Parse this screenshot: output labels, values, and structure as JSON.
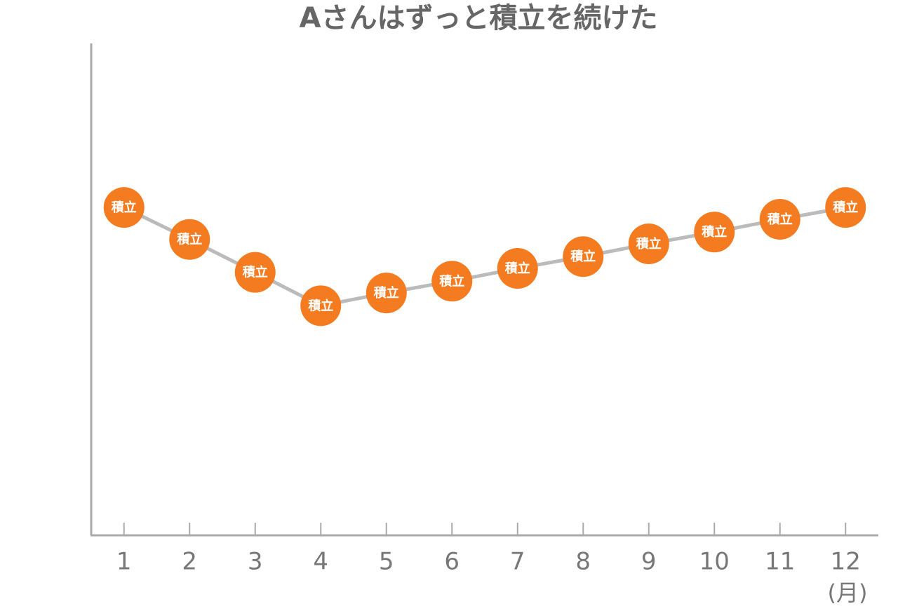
{
  "chart_data": {
    "type": "line",
    "title": "Aさんはずっと積立を続けた",
    "categories": [
      "1",
      "2",
      "3",
      "4",
      "5",
      "6",
      "7",
      "8",
      "9",
      "10",
      "11",
      "12"
    ],
    "x_label": "(月)",
    "marker_label": "積立",
    "values": [
      66.6,
      60.1,
      53.4,
      46.6,
      49.2,
      51.6,
      54.2,
      56.6,
      59.2,
      61.6,
      64.2,
      66.6
    ],
    "ylim": [
      0,
      100
    ],
    "line_color": "#bbbbbb",
    "color": "#f47b20"
  }
}
